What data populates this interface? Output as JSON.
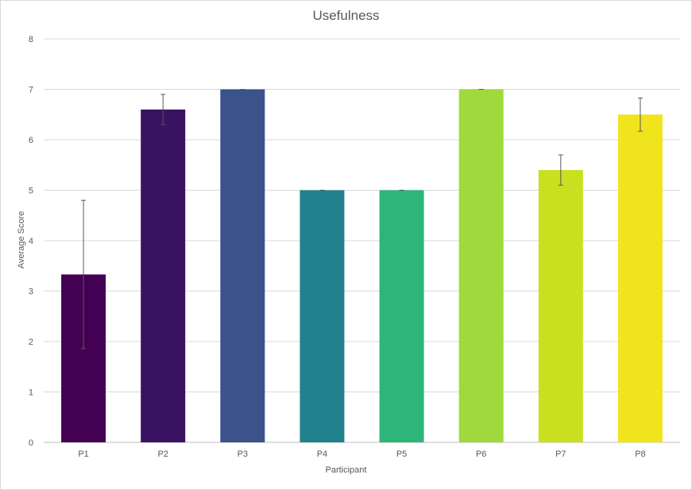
{
  "chart_data": {
    "type": "bar",
    "title": "Usefulness",
    "xlabel": "Participant",
    "ylabel": "Average Score",
    "categories": [
      "P1",
      "P2",
      "P3",
      "P4",
      "P5",
      "P6",
      "P7",
      "P8"
    ],
    "values": [
      3.33,
      6.6,
      7.0,
      5.0,
      5.0,
      7.0,
      5.4,
      6.5
    ],
    "error": [
      1.47,
      0.3,
      0.0,
      0.0,
      0.0,
      0.0,
      0.3,
      0.33
    ],
    "colors": [
      "#440154",
      "#3a1262",
      "#3b528b",
      "#21818c",
      "#2db57a",
      "#9fd93b",
      "#c9e020",
      "#f0e41d"
    ],
    "ylim": [
      0,
      8
    ],
    "yticks": [
      0,
      1,
      2,
      3,
      4,
      5,
      6,
      7,
      8
    ],
    "grid": true
  }
}
